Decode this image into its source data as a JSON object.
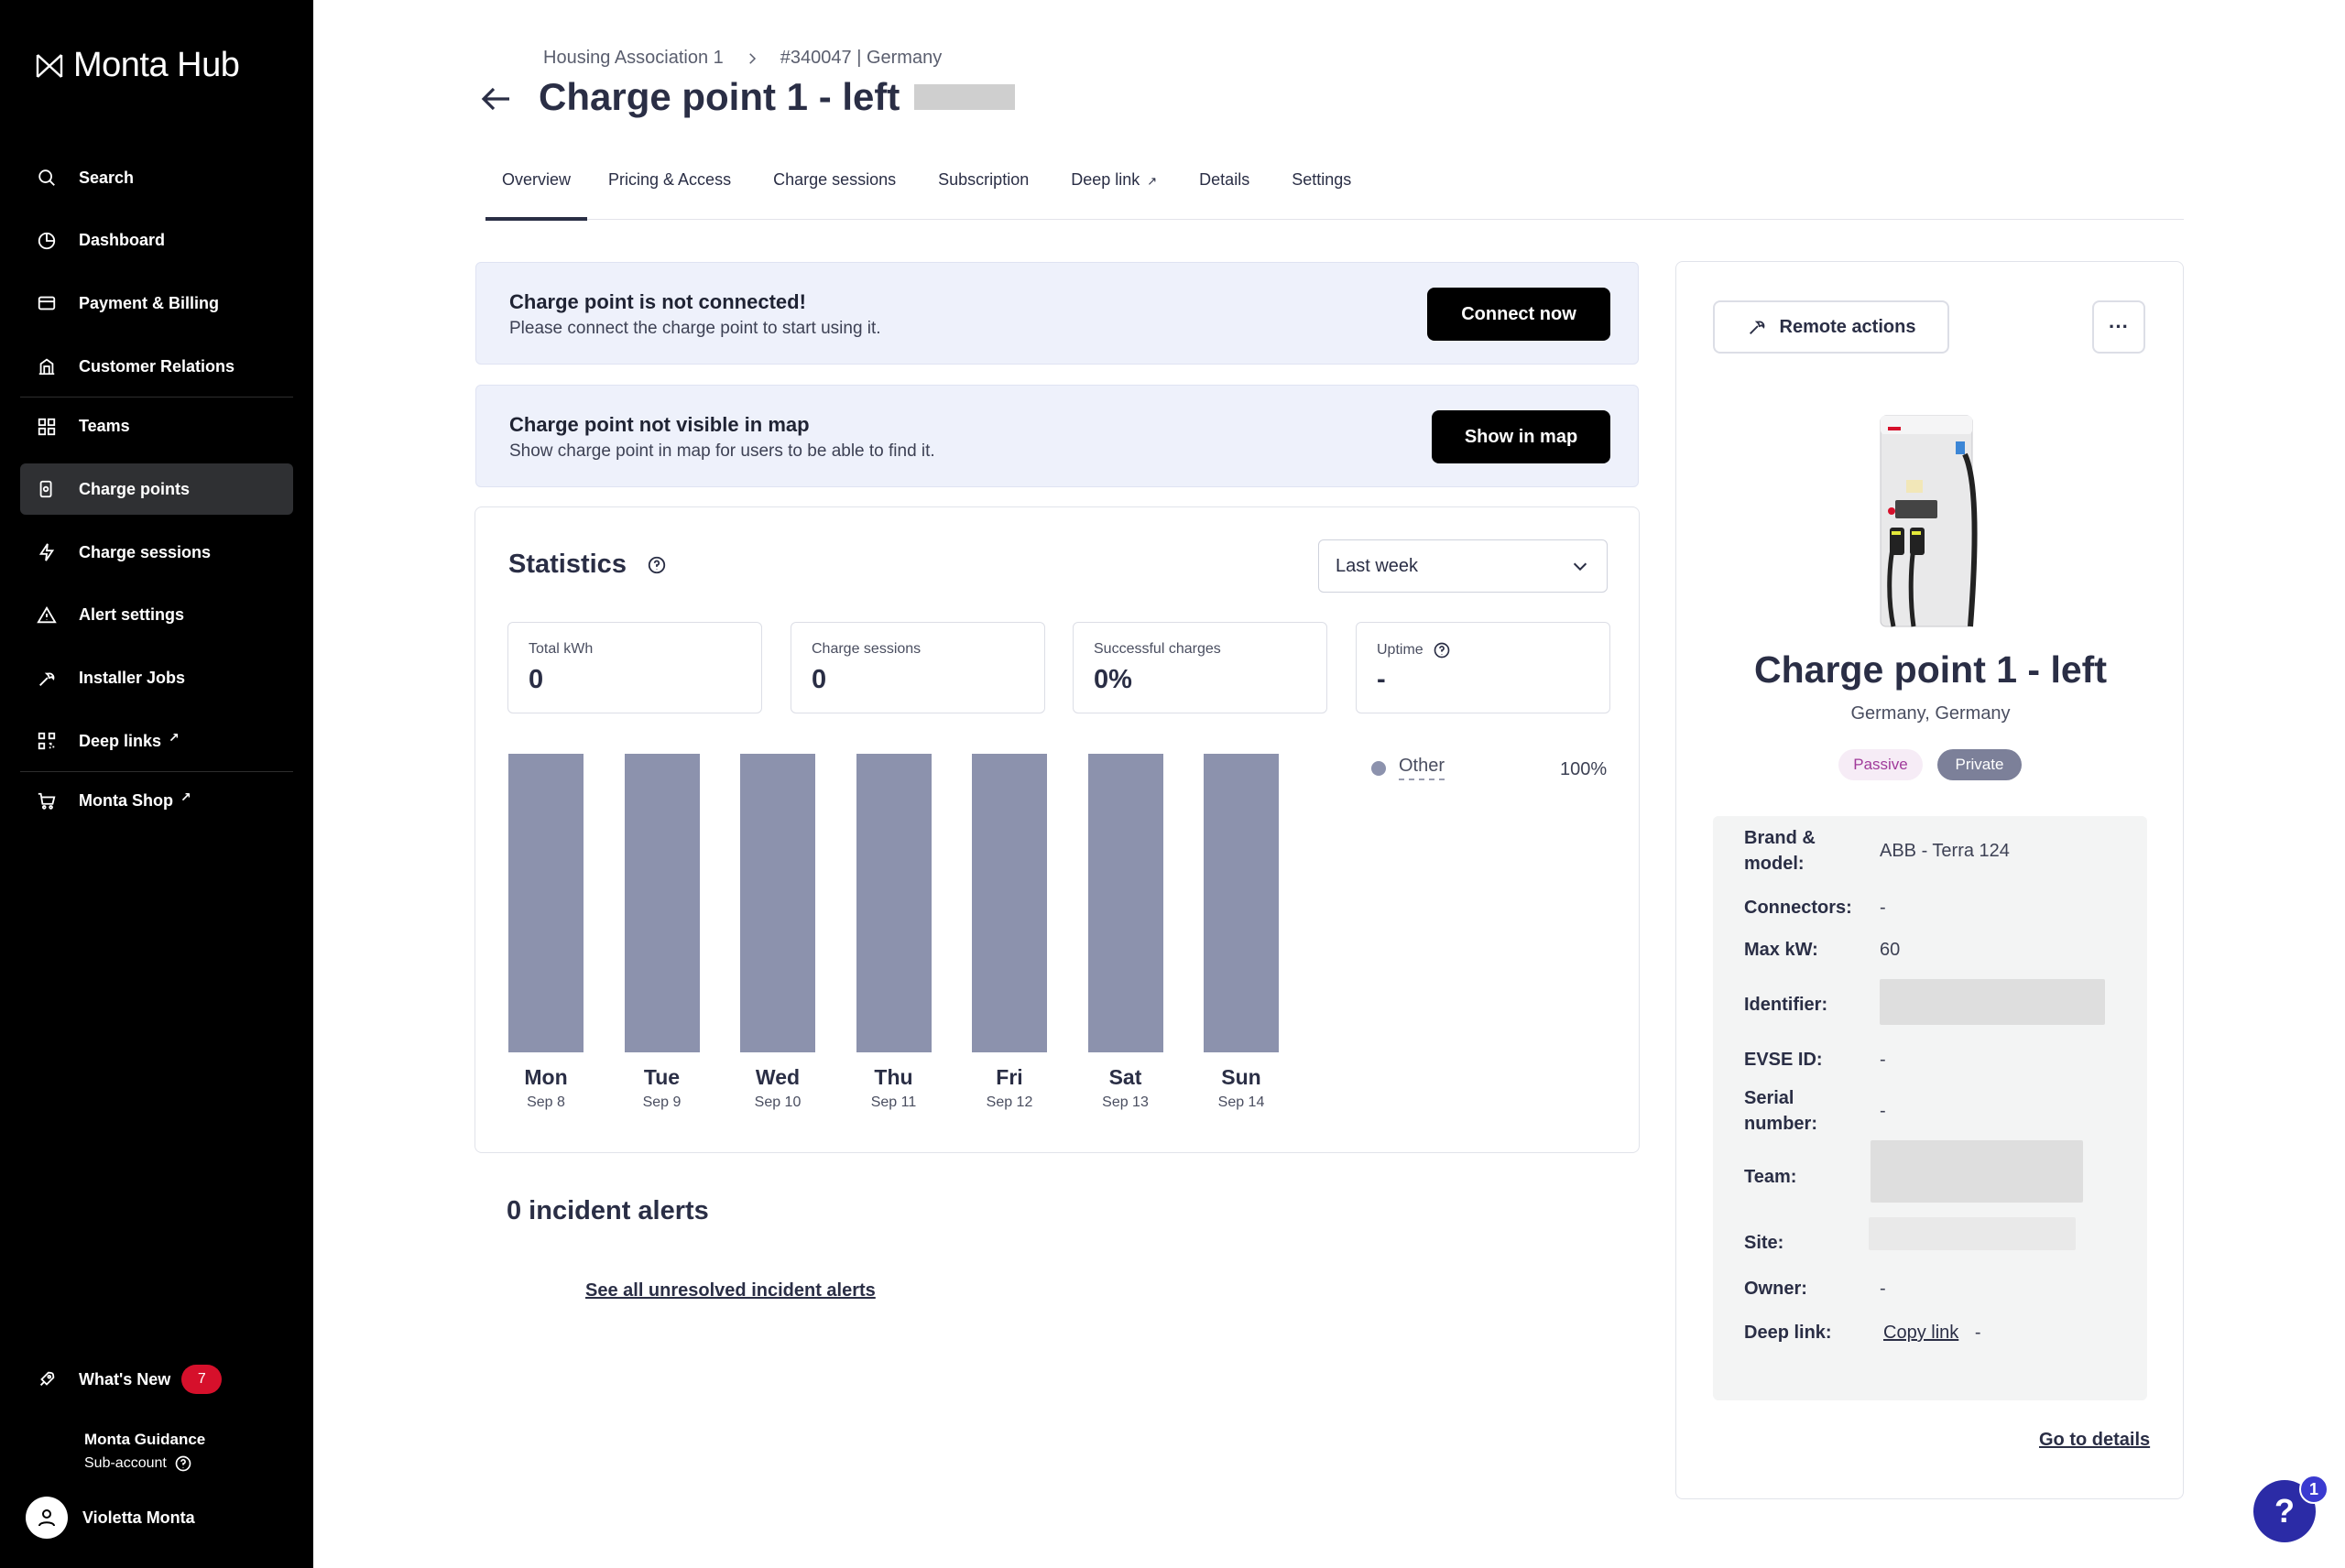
{
  "app": {
    "logo_text": "Monta Hub"
  },
  "sidebar": {
    "items": [
      {
        "label": "Search",
        "icon": "search-icon"
      },
      {
        "label": "Dashboard",
        "icon": "dashboard-icon"
      },
      {
        "label": "Payment & Billing",
        "icon": "card-icon"
      },
      {
        "label": "Customer Relations",
        "icon": "building-icon"
      },
      {
        "label": "Teams",
        "icon": "grid-icon"
      },
      {
        "label": "Charge points",
        "icon": "charger-icon",
        "active": true
      },
      {
        "label": "Charge sessions",
        "icon": "bolt-icon"
      },
      {
        "label": "Alert settings",
        "icon": "alert-icon"
      },
      {
        "label": "Installer Jobs",
        "icon": "wrench-icon"
      },
      {
        "label": "Deep links",
        "icon": "qr-icon",
        "external": "↗"
      },
      {
        "label": "Monta Shop",
        "icon": "cart-icon",
        "external": "↗"
      }
    ],
    "whats_new": {
      "label": "What's New",
      "count": "7"
    },
    "guidance": {
      "title": "Monta Guidance",
      "subtitle": "Sub-account"
    },
    "user": {
      "name": "Violetta Monta"
    }
  },
  "header": {
    "breadcrumb": [
      "Housing Association 1",
      "#340047 | Germany"
    ],
    "title": "Charge point 1 - left"
  },
  "tabs": [
    {
      "label": "Overview",
      "active": true
    },
    {
      "label": "Pricing & Access"
    },
    {
      "label": "Charge sessions"
    },
    {
      "label": "Subscription"
    },
    {
      "label": "Deep link",
      "external": "↗"
    },
    {
      "label": "Details"
    },
    {
      "label": "Settings"
    }
  ],
  "banners": {
    "connect": {
      "title": "Charge point is not connected!",
      "desc": "Please connect the charge point to start using it.",
      "button": "Connect now"
    },
    "map": {
      "title": "Charge point not visible in map",
      "desc": "Show charge point in map for users to be able to find it.",
      "button": "Show in map"
    }
  },
  "statistics": {
    "title": "Statistics",
    "period": "Last week",
    "kpis": [
      {
        "label": "Total kWh",
        "value": "0"
      },
      {
        "label": "Charge sessions",
        "value": "0"
      },
      {
        "label": "Successful charges",
        "value": "0%"
      },
      {
        "label": "Uptime",
        "value": "-"
      }
    ],
    "legend": {
      "name": "Other",
      "percent": "100%",
      "color": "#8c92ad"
    }
  },
  "chart_data": {
    "type": "bar",
    "categories": [
      "Mon",
      "Tue",
      "Wed",
      "Thu",
      "Fri",
      "Sat",
      "Sun"
    ],
    "dates": [
      "Sep 8",
      "Sep 9",
      "Sep 10",
      "Sep 11",
      "Sep 12",
      "Sep 13",
      "Sep 14"
    ],
    "series": [
      {
        "name": "Other",
        "values": [
          100,
          100,
          100,
          100,
          100,
          100,
          100
        ]
      }
    ],
    "ylim": [
      0,
      100
    ],
    "color": "#8c92ad"
  },
  "incidents": {
    "title": "0 incident alerts",
    "link": "See all unresolved incident alerts"
  },
  "panel": {
    "remote_actions": "Remote actions",
    "more": "···",
    "name": "Charge point 1 - left",
    "location": "Germany, Germany",
    "tags": {
      "passive": "Passive",
      "private": "Private"
    },
    "details": {
      "brand_label": "Brand & model:",
      "brand_value": "ABB - Terra 124",
      "connectors_label": "Connectors:",
      "connectors_value": "-",
      "maxkw_label": "Max kW:",
      "maxkw_value": "60",
      "identifier_label": "Identifier:",
      "evse_label": "EVSE ID:",
      "evse_value": "-",
      "serial_label": "Serial number:",
      "serial_value": "-",
      "team_label": "Team:",
      "site_label": "Site:",
      "owner_label": "Owner:",
      "owner_value": "-",
      "deeplink_label": "Deep link:",
      "deeplink_value": "Copy link",
      "deeplink_dash": "-"
    },
    "go_details": "Go to details"
  },
  "help": {
    "label": "?",
    "badge": "1"
  }
}
